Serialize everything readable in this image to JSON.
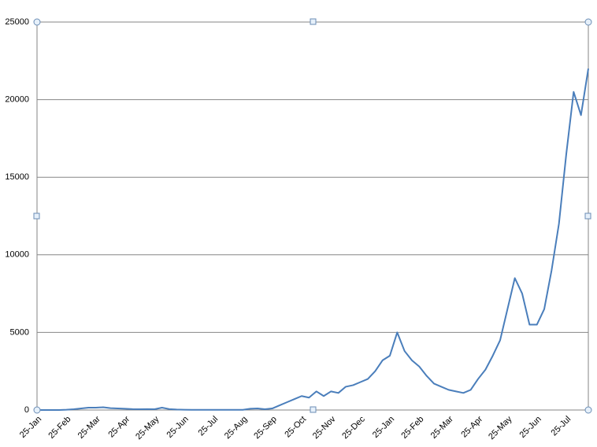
{
  "chart_data": {
    "type": "line",
    "categories": [
      "25-Jan",
      null,
      null,
      null,
      "25-Feb",
      null,
      null,
      null,
      "25-Mar",
      null,
      null,
      null,
      "25-Apr",
      null,
      null,
      null,
      "25-May",
      null,
      null,
      null,
      "25-Jun",
      null,
      null,
      null,
      "25-Jul",
      null,
      null,
      null,
      "25-Aug",
      null,
      null,
      null,
      "25-Sep",
      null,
      null,
      null,
      "25-Oct",
      null,
      null,
      null,
      "25-Nov",
      null,
      null,
      null,
      "25-Dec",
      null,
      null,
      null,
      "25-Jan",
      null,
      null,
      null,
      "25-Feb",
      null,
      null,
      null,
      "25-Mar",
      null,
      null,
      null,
      "25-Apr",
      null,
      null,
      null,
      "25-May",
      null,
      null,
      null,
      "25-Jun",
      null,
      null,
      null,
      "25-Jul",
      null,
      null,
      null
    ],
    "series": [
      {
        "color": "#4a7ebb",
        "values": [
          0,
          0,
          0,
          0,
          20,
          50,
          100,
          150,
          150,
          180,
          120,
          100,
          80,
          60,
          50,
          60,
          50,
          150,
          60,
          30,
          20,
          10,
          10,
          10,
          10,
          10,
          10,
          10,
          10,
          80,
          100,
          50,
          100,
          300,
          500,
          700,
          900,
          800,
          1200,
          900,
          1200,
          1100,
          1500,
          1600,
          1800,
          2000,
          2500,
          3200,
          3500,
          5000,
          3800,
          3200,
          2800,
          2200,
          1700,
          1500,
          1300,
          1200,
          1100,
          1300,
          2000,
          2600,
          3500,
          4500,
          6500,
          8500,
          7500,
          5500,
          5500,
          6500,
          9000,
          12000,
          16500,
          20500,
          19000,
          22000
        ]
      }
    ],
    "ylim": [
      0,
      25000
    ],
    "yticks": [
      0,
      5000,
      10000,
      15000,
      20000,
      25000
    ],
    "grid": true
  }
}
